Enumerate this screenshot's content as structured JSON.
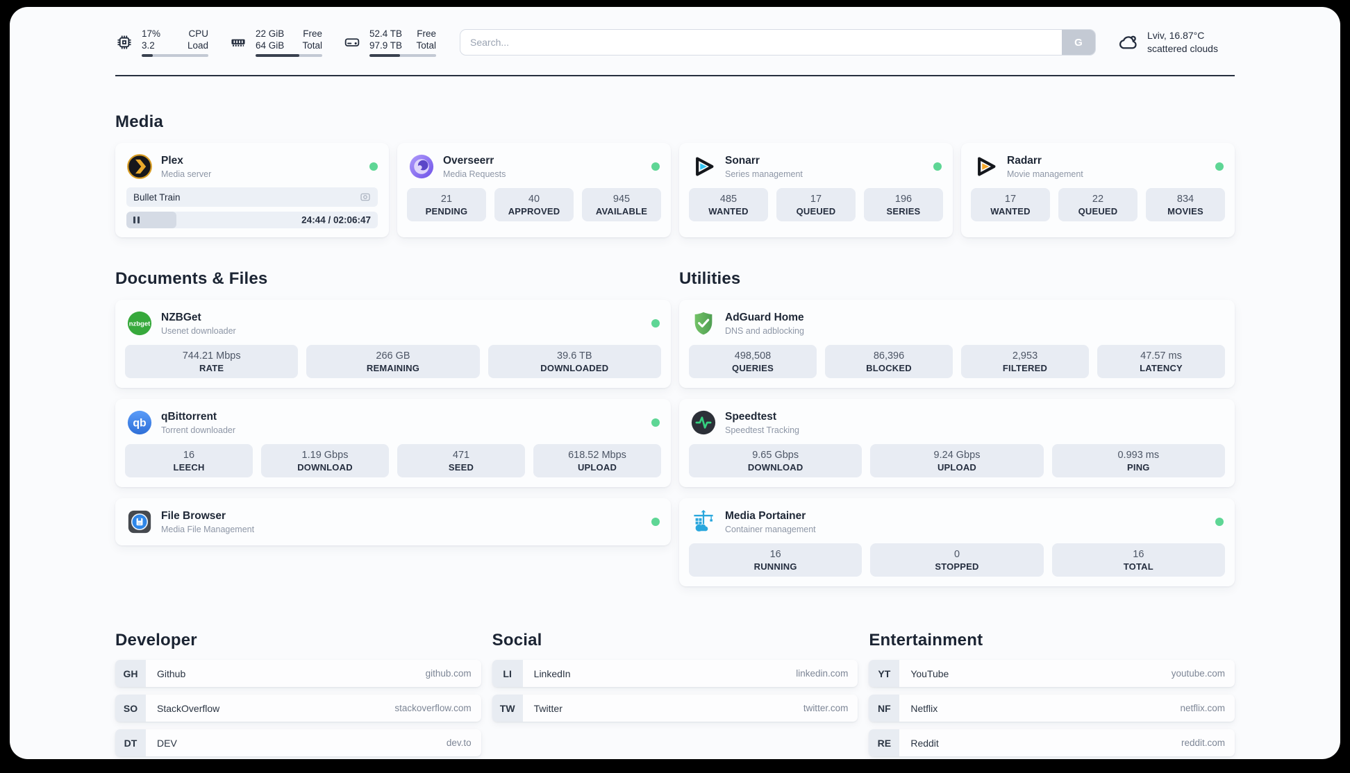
{
  "topbar": {
    "cpu": {
      "v1": "17%",
      "v2": "3.2",
      "l1": "CPU",
      "l2": "Load",
      "progress": 17
    },
    "ram": {
      "v1": "22 GiB",
      "v2": "64 GiB",
      "l1": "Free",
      "l2": "Total",
      "progress": 66
    },
    "disk": {
      "v1": "52.4 TB",
      "v2": "97.9 TB",
      "l1": "Free",
      "l2": "Total",
      "progress": 46
    },
    "search": {
      "placeholder": "Search...",
      "button_label": "G"
    },
    "weather": {
      "line1": "Lviv, 16.87°C",
      "line2": "scattered clouds"
    }
  },
  "media": {
    "title": "Media",
    "plex": {
      "name": "Plex",
      "desc": "Media server",
      "now_playing": "Bullet Train",
      "time": "24:44 / 02:06:47",
      "progress": 20
    },
    "overseerr": {
      "name": "Overseerr",
      "desc": "Media Requests",
      "stats": [
        {
          "value": "21",
          "label": "PENDING"
        },
        {
          "value": "40",
          "label": "APPROVED"
        },
        {
          "value": "945",
          "label": "AVAILABLE"
        }
      ]
    },
    "sonarr": {
      "name": "Sonarr",
      "desc": "Series management",
      "stats": [
        {
          "value": "485",
          "label": "WANTED"
        },
        {
          "value": "17",
          "label": "QUEUED"
        },
        {
          "value": "196",
          "label": "SERIES"
        }
      ]
    },
    "radarr": {
      "name": "Radarr",
      "desc": "Movie management",
      "stats": [
        {
          "value": "17",
          "label": "WANTED"
        },
        {
          "value": "22",
          "label": "QUEUED"
        },
        {
          "value": "834",
          "label": "MOVIES"
        }
      ]
    }
  },
  "documents": {
    "title": "Documents & Files",
    "nzbget": {
      "name": "NZBGet",
      "desc": "Usenet downloader",
      "icon_text": "nzbget",
      "stats": [
        {
          "value": "744.21 Mbps",
          "label": "RATE"
        },
        {
          "value": "266 GB",
          "label": "REMAINING"
        },
        {
          "value": "39.6 TB",
          "label": "DOWNLOADED"
        }
      ]
    },
    "qbittorrent": {
      "name": "qBittorrent",
      "desc": "Torrent downloader",
      "icon_text": "qb",
      "stats": [
        {
          "value": "16",
          "label": "LEECH"
        },
        {
          "value": "1.19 Gbps",
          "label": "DOWNLOAD"
        },
        {
          "value": "471",
          "label": "SEED"
        },
        {
          "value": "618.52 Mbps",
          "label": "UPLOAD"
        }
      ]
    },
    "filebrowser": {
      "name": "File Browser",
      "desc": "Media File Management"
    }
  },
  "utilities": {
    "title": "Utilities",
    "adguard": {
      "name": "AdGuard Home",
      "desc": "DNS and adblocking",
      "stats": [
        {
          "value": "498,508",
          "label": "QUERIES"
        },
        {
          "value": "86,396",
          "label": "BLOCKED"
        },
        {
          "value": "2,953",
          "label": "FILTERED"
        },
        {
          "value": "47.57 ms",
          "label": "LATENCY"
        }
      ]
    },
    "speedtest": {
      "name": "Speedtest",
      "desc": "Speedtest Tracking",
      "stats": [
        {
          "value": "9.65 Gbps",
          "label": "DOWNLOAD"
        },
        {
          "value": "9.24 Gbps",
          "label": "UPLOAD"
        },
        {
          "value": "0.993 ms",
          "label": "PING"
        }
      ]
    },
    "portainer": {
      "name": "Media Portainer",
      "desc": "Container management",
      "stats": [
        {
          "value": "16",
          "label": "RUNNING"
        },
        {
          "value": "0",
          "label": "STOPPED"
        },
        {
          "value": "16",
          "label": "TOTAL"
        }
      ]
    }
  },
  "bookmarks": {
    "developer": {
      "title": "Developer",
      "items": [
        {
          "abbr": "GH",
          "name": "Github",
          "url": "github.com"
        },
        {
          "abbr": "SO",
          "name": "StackOverflow",
          "url": "stackoverflow.com"
        },
        {
          "abbr": "DT",
          "name": "DEV",
          "url": "dev.to"
        }
      ]
    },
    "social": {
      "title": "Social",
      "items": [
        {
          "abbr": "LI",
          "name": "LinkedIn",
          "url": "linkedin.com"
        },
        {
          "abbr": "TW",
          "name": "Twitter",
          "url": "twitter.com"
        }
      ]
    },
    "entertainment": {
      "title": "Entertainment",
      "items": [
        {
          "abbr": "YT",
          "name": "YouTube",
          "url": "youtube.com"
        },
        {
          "abbr": "NF",
          "name": "Netflix",
          "url": "netflix.com"
        },
        {
          "abbr": "RE",
          "name": "Reddit",
          "url": "reddit.com"
        }
      ]
    }
  },
  "colors": {
    "status_online": "#5ed695",
    "topbar_fill": "#39414f"
  }
}
